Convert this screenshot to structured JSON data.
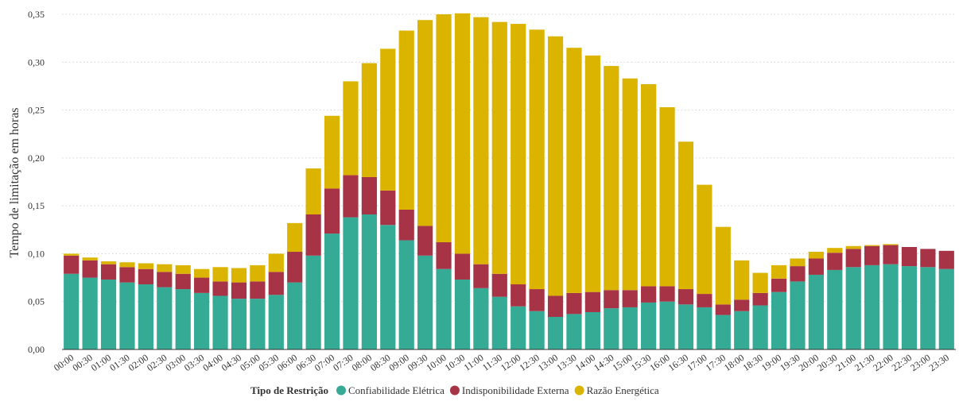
{
  "chart_data": {
    "type": "bar",
    "stacked": true,
    "title": "",
    "xlabel": "",
    "ylabel": "Tempo de limitação em horas",
    "ylim": [
      0,
      0.35
    ],
    "yticks": [
      "0,00",
      "0,05",
      "0,10",
      "0,15",
      "0,20",
      "0,25",
      "0,30",
      "0,35"
    ],
    "grid": true,
    "legend_position": "bottom",
    "legend_title": "Tipo de Restrição",
    "categories": [
      "00:00",
      "00:30",
      "01:00",
      "01:30",
      "02:00",
      "02:30",
      "03:00",
      "03:30",
      "04:00",
      "04:30",
      "05:00",
      "05:30",
      "06:00",
      "06:30",
      "07:00",
      "07:30",
      "08:00",
      "08:30",
      "09:00",
      "09:30",
      "10:00",
      "10:30",
      "11:00",
      "11:30",
      "12:00",
      "12:30",
      "13:00",
      "13:30",
      "14:00",
      "14:30",
      "15:00",
      "15:30",
      "16:00",
      "16:30",
      "17:00",
      "17:30",
      "18:00",
      "18:30",
      "19:00",
      "19:30",
      "20:00",
      "20:30",
      "21:00",
      "21:30",
      "22:00",
      "22:30",
      "23:00",
      "23:30"
    ],
    "series": [
      {
        "name": "Confiabilidade Elétrica",
        "color": "#35ab96",
        "values": [
          0.079,
          0.075,
          0.073,
          0.07,
          0.068,
          0.065,
          0.063,
          0.059,
          0.056,
          0.053,
          0.053,
          0.057,
          0.07,
          0.098,
          0.121,
          0.138,
          0.141,
          0.13,
          0.114,
          0.098,
          0.084,
          0.073,
          0.064,
          0.055,
          0.045,
          0.04,
          0.034,
          0.037,
          0.039,
          0.043,
          0.044,
          0.049,
          0.05,
          0.047,
          0.044,
          0.036,
          0.04,
          0.046,
          0.06,
          0.071,
          0.078,
          0.083,
          0.086,
          0.088,
          0.089,
          0.087,
          0.086,
          0.084
        ]
      },
      {
        "name": "Indisponibilidade Externa",
        "color": "#a63446",
        "values": [
          0.019,
          0.018,
          0.016,
          0.016,
          0.016,
          0.016,
          0.016,
          0.016,
          0.015,
          0.017,
          0.018,
          0.024,
          0.032,
          0.043,
          0.047,
          0.044,
          0.039,
          0.036,
          0.032,
          0.031,
          0.028,
          0.027,
          0.025,
          0.024,
          0.023,
          0.023,
          0.022,
          0.022,
          0.021,
          0.019,
          0.018,
          0.017,
          0.016,
          0.016,
          0.014,
          0.011,
          0.012,
          0.013,
          0.014,
          0.016,
          0.017,
          0.018,
          0.019,
          0.02,
          0.02,
          0.02,
          0.019,
          0.019
        ]
      },
      {
        "name": "Razão Energética",
        "color": "#dbb400",
        "values": [
          0.002,
          0.003,
          0.003,
          0.005,
          0.006,
          0.008,
          0.009,
          0.009,
          0.015,
          0.015,
          0.017,
          0.019,
          0.03,
          0.048,
          0.076,
          0.098,
          0.119,
          0.148,
          0.187,
          0.215,
          0.238,
          0.251,
          0.258,
          0.263,
          0.272,
          0.271,
          0.271,
          0.256,
          0.247,
          0.234,
          0.221,
          0.211,
          0.187,
          0.154,
          0.114,
          0.081,
          0.041,
          0.021,
          0.014,
          0.008,
          0.007,
          0.005,
          0.003,
          0.001,
          0.001,
          0.0,
          0.0,
          0.0
        ]
      }
    ]
  }
}
